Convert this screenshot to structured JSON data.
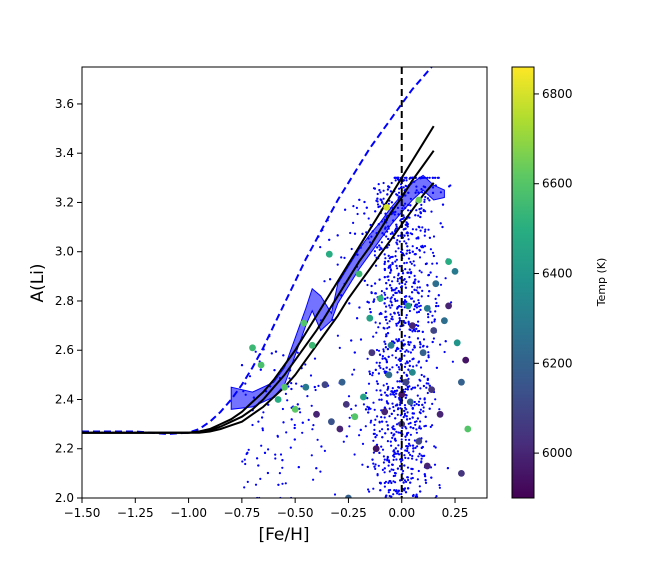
{
  "chart_data": {
    "type": "scatter",
    "xlabel": "[Fe/H]",
    "ylabel": "A(Li)",
    "xlim": [
      -1.5,
      0.4
    ],
    "ylim": [
      2.0,
      3.75
    ],
    "x_ticks": [
      -1.5,
      -1.25,
      -1.0,
      -0.75,
      -0.5,
      -0.25,
      0.0,
      0.25
    ],
    "x_tick_labels": [
      "−1.50",
      "−1.25",
      "−1.00",
      "−0.75",
      "−0.50",
      "−0.25",
      "0.00",
      "0.25"
    ],
    "y_ticks": [
      2.0,
      2.2,
      2.4,
      2.6,
      2.8,
      3.0,
      3.2,
      3.4,
      3.6
    ],
    "y_tick_labels": [
      "2.0",
      "2.2",
      "2.4",
      "2.6",
      "2.8",
      "3.0",
      "3.2",
      "3.4",
      "3.6"
    ],
    "vertical_line": {
      "x": 0.0,
      "style": "dashed",
      "color": "#000000"
    },
    "colorbar": {
      "label": "Temp (K)",
      "range": [
        5900,
        6860
      ],
      "ticks": [
        6000,
        6200,
        6400,
        6600,
        6800
      ],
      "tick_labels": [
        "6000",
        "6200",
        "6400",
        "6600",
        "6800"
      ],
      "colormap": "viridis"
    },
    "series": [
      {
        "style": "dashed-line",
        "color": "#0000ff",
        "x": [
          -1.5,
          -1.25,
          -1.1,
          -1.0,
          -0.95,
          -0.9,
          -0.85,
          -0.8,
          -0.75,
          -0.7,
          -0.65,
          -0.6,
          -0.55,
          -0.5,
          -0.45,
          -0.4,
          -0.35,
          -0.3,
          -0.25,
          -0.2,
          -0.15,
          -0.1,
          -0.05,
          0.0,
          0.05,
          0.1,
          0.15
        ],
        "y": [
          2.27,
          2.27,
          2.26,
          2.265,
          2.28,
          2.31,
          2.35,
          2.4,
          2.46,
          2.53,
          2.61,
          2.7,
          2.79,
          2.88,
          2.97,
          3.05,
          3.13,
          3.21,
          3.28,
          3.35,
          3.42,
          3.48,
          3.54,
          3.6,
          3.66,
          3.71,
          3.76
        ]
      },
      {
        "style": "line",
        "color": "#000000",
        "x": [
          -1.5,
          -1.2,
          -1.0,
          -0.95,
          -0.9,
          -0.85,
          -0.8,
          -0.75,
          -0.7,
          -0.65,
          -0.6,
          -0.55,
          -0.5,
          -0.45,
          -0.4,
          -0.35,
          -0.3,
          -0.25,
          -0.2,
          -0.15,
          -0.1,
          -0.05,
          0.0,
          0.05,
          0.1,
          0.15
        ],
        "y": [
          2.265,
          2.265,
          2.265,
          2.27,
          2.28,
          2.3,
          2.32,
          2.35,
          2.39,
          2.43,
          2.48,
          2.54,
          2.6,
          2.67,
          2.74,
          2.81,
          2.88,
          2.95,
          3.02,
          3.09,
          3.16,
          3.23,
          3.3,
          3.37,
          3.44,
          3.51
        ]
      },
      {
        "style": "line",
        "color": "#000000",
        "x": [
          -1.5,
          -1.2,
          -1.0,
          -0.95,
          -0.9,
          -0.85,
          -0.8,
          -0.75,
          -0.7,
          -0.65,
          -0.6,
          -0.55,
          -0.5,
          -0.45,
          -0.4,
          -0.35,
          -0.3,
          -0.25,
          -0.2,
          -0.15,
          -0.1,
          -0.05,
          0.0,
          0.05,
          0.1,
          0.15
        ],
        "y": [
          2.265,
          2.265,
          2.265,
          2.27,
          2.275,
          2.29,
          2.31,
          2.33,
          2.36,
          2.4,
          2.45,
          2.5,
          2.56,
          2.62,
          2.68,
          2.75,
          2.82,
          2.89,
          2.96,
          3.02,
          3.09,
          3.16,
          3.22,
          3.29,
          3.35,
          3.41
        ]
      },
      {
        "style": "line",
        "color": "#000000",
        "x": [
          -1.5,
          -1.2,
          -1.0,
          -0.95,
          -0.9,
          -0.85,
          -0.8,
          -0.75,
          -0.7,
          -0.65,
          -0.6,
          -0.55,
          -0.5,
          -0.45,
          -0.4,
          -0.35,
          -0.3,
          -0.25,
          -0.2,
          -0.15,
          -0.1,
          -0.05,
          0.0,
          0.05,
          0.1,
          0.15
        ],
        "y": [
          2.265,
          2.265,
          2.265,
          2.265,
          2.27,
          2.28,
          2.295,
          2.31,
          2.34,
          2.37,
          2.41,
          2.45,
          2.5,
          2.56,
          2.62,
          2.68,
          2.74,
          2.81,
          2.87,
          2.93,
          2.99,
          3.05,
          3.11,
          3.17,
          3.23,
          3.28
        ]
      }
    ],
    "band": {
      "color": "#0000ff",
      "opacity": 0.55,
      "x": [
        -0.8,
        -0.7,
        -0.6,
        -0.55,
        -0.5,
        -0.45,
        -0.42,
        -0.38,
        -0.33,
        -0.3,
        -0.25,
        -0.2,
        -0.15,
        -0.1,
        -0.05,
        0.0,
        0.05,
        0.1,
        0.15,
        0.2
      ],
      "upper": [
        2.45,
        2.43,
        2.47,
        2.53,
        2.65,
        2.77,
        2.85,
        2.82,
        2.75,
        2.87,
        2.94,
        3.01,
        3.07,
        3.12,
        3.18,
        3.23,
        3.28,
        3.31,
        3.27,
        3.25
      ],
      "lower": [
        2.36,
        2.37,
        2.41,
        2.46,
        2.58,
        2.7,
        2.76,
        2.68,
        2.72,
        2.79,
        2.86,
        2.93,
        2.99,
        3.05,
        3.11,
        3.16,
        3.21,
        3.25,
        3.21,
        3.22
      ]
    },
    "big_points": [
      {
        "x": -0.07,
        "y": 3.18,
        "temp": 6800
      },
      {
        "x": 0.08,
        "y": 3.21,
        "temp": 6650
      },
      {
        "x": -0.46,
        "y": 2.71,
        "temp": 6600
      },
      {
        "x": -0.42,
        "y": 2.62,
        "temp": 6550
      },
      {
        "x": -0.55,
        "y": 2.45,
        "temp": 6600
      },
      {
        "x": -0.5,
        "y": 2.36,
        "temp": 6620
      },
      {
        "x": -0.58,
        "y": 2.4,
        "temp": 6500
      },
      {
        "x": -0.66,
        "y": 2.54,
        "temp": 6580
      },
      {
        "x": -0.7,
        "y": 2.61,
        "temp": 6550
      },
      {
        "x": -0.34,
        "y": 2.99,
        "temp": 6500
      },
      {
        "x": -0.2,
        "y": 2.91,
        "temp": 6550
      },
      {
        "x": -0.15,
        "y": 2.73,
        "temp": 6450
      },
      {
        "x": -0.1,
        "y": 2.81,
        "temp": 6520
      },
      {
        "x": -0.28,
        "y": 2.47,
        "temp": 6200
      },
      {
        "x": -0.26,
        "y": 2.38,
        "temp": 6050
      },
      {
        "x": -0.22,
        "y": 2.33,
        "temp": 6600
      },
      {
        "x": -0.18,
        "y": 2.41,
        "temp": 6450
      },
      {
        "x": -0.05,
        "y": 2.62,
        "temp": 6300
      },
      {
        "x": 0.05,
        "y": 2.7,
        "temp": 6000
      },
      {
        "x": 0.02,
        "y": 2.47,
        "temp": 6100
      },
      {
        "x": 0.0,
        "y": 2.42,
        "temp": 5950
      },
      {
        "x": 0.05,
        "y": 2.51,
        "temp": 6350
      },
      {
        "x": 0.1,
        "y": 2.59,
        "temp": 6200
      },
      {
        "x": 0.14,
        "y": 2.44,
        "temp": 6050
      },
      {
        "x": 0.18,
        "y": 2.34,
        "temp": 6000
      },
      {
        "x": 0.2,
        "y": 2.72,
        "temp": 6250
      },
      {
        "x": 0.22,
        "y": 2.96,
        "temp": 6500
      },
      {
        "x": 0.25,
        "y": 2.92,
        "temp": 6300
      },
      {
        "x": 0.22,
        "y": 2.78,
        "temp": 6000
      },
      {
        "x": 0.26,
        "y": 2.63,
        "temp": 6400
      },
      {
        "x": 0.3,
        "y": 2.56,
        "temp": 5950
      },
      {
        "x": 0.28,
        "y": 2.1,
        "temp": 6050
      },
      {
        "x": 0.31,
        "y": 2.28,
        "temp": 6600
      },
      {
        "x": -0.36,
        "y": 2.46,
        "temp": 6100
      },
      {
        "x": -0.33,
        "y": 2.31,
        "temp": 6150
      },
      {
        "x": -0.29,
        "y": 2.28,
        "temp": 6000
      },
      {
        "x": -0.25,
        "y": 2.0,
        "temp": 6200
      },
      {
        "x": -0.12,
        "y": 2.2,
        "temp": 5950
      },
      {
        "x": -0.08,
        "y": 2.35,
        "temp": 6000
      },
      {
        "x": 0.0,
        "y": 2.3,
        "temp": 6050
      },
      {
        "x": 0.08,
        "y": 2.23,
        "temp": 6100
      },
      {
        "x": 0.12,
        "y": 2.13,
        "temp": 6000
      },
      {
        "x": -0.06,
        "y": 2.5,
        "temp": 6250
      },
      {
        "x": 0.03,
        "y": 2.78,
        "temp": 6400
      },
      {
        "x": -0.14,
        "y": 2.59,
        "temp": 6050
      },
      {
        "x": 0.16,
        "y": 2.87,
        "temp": 6250
      },
      {
        "x": 0.15,
        "y": 2.68,
        "temp": 6100
      },
      {
        "x": 0.28,
        "y": 2.47,
        "temp": 6200
      },
      {
        "x": -0.45,
        "y": 2.45,
        "temp": 6300
      },
      {
        "x": -0.4,
        "y": 2.34,
        "temp": 6000
      },
      {
        "x": 0.12,
        "y": 2.77,
        "temp": 6300
      },
      {
        "x": 0.04,
        "y": 2.39,
        "temp": 6200
      }
    ],
    "small_points": {
      "color": "#0000ff",
      "description_count": 1700
    }
  }
}
